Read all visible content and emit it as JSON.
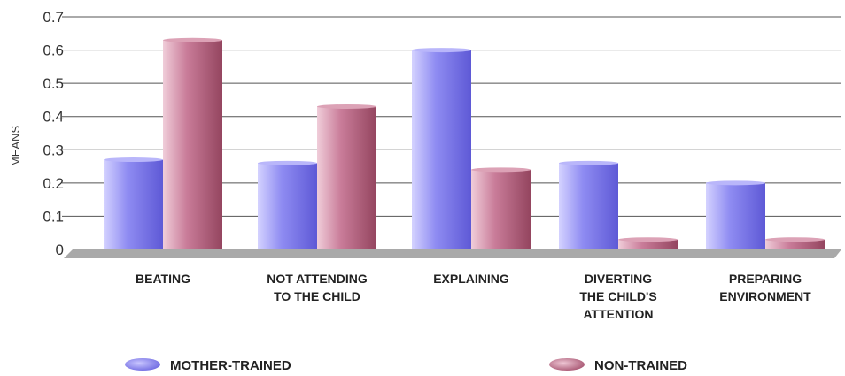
{
  "chart_data": {
    "type": "bar",
    "ylabel": "MEANS",
    "ylim": [
      0,
      0.7
    ],
    "yticks": [
      "0",
      "0.1",
      "0.2",
      "0.3",
      "0.4",
      "0.5",
      "0.6",
      "0.7"
    ],
    "grid": true,
    "legend_position": "bottom",
    "categories": [
      [
        "BEATING"
      ],
      [
        "NOT ATTENDING",
        "TO THE CHILD"
      ],
      [
        "EXPLAINING"
      ],
      [
        "DIVERTING",
        "THE CHILD'S",
        "ATTENTION"
      ],
      [
        "PREPARING",
        "ENVIRONMENT"
      ]
    ],
    "series": [
      {
        "name": "MOTHER-TRAINED",
        "values": [
          0.27,
          0.26,
          0.6,
          0.26,
          0.2
        ],
        "color": "#8a86ee"
      },
      {
        "name": "NON-TRAINED",
        "values": [
          0.63,
          0.43,
          0.24,
          0.03,
          0.03
        ],
        "color": "#c26e8c"
      }
    ]
  }
}
